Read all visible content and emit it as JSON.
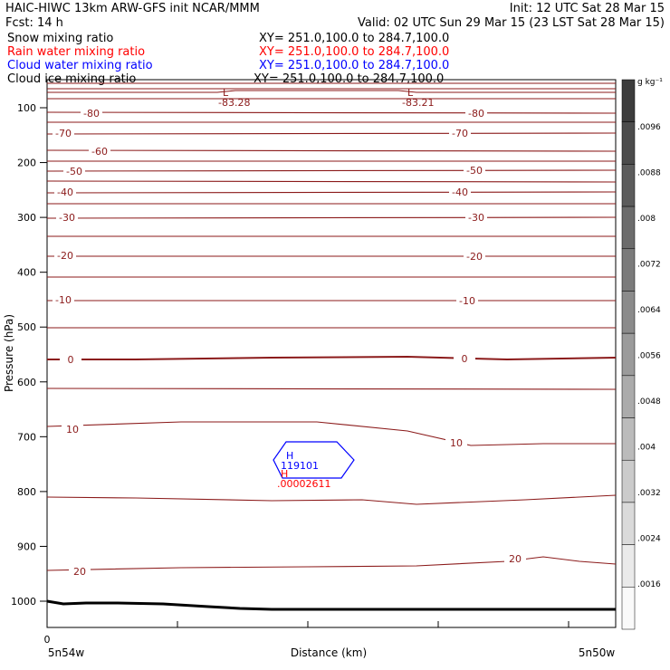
{
  "header": {
    "title": "HAIC-HIWC 13km ARW-GFS init   NCAR/MMM",
    "init": "Init: 12 UTC Sat 28 Mar 15",
    "fcst": "Fcst:   14 h",
    "valid": "Valid: 02 UTC Sun 29 Mar 15 (23 LST Sat 28 Mar 15)",
    "fields": [
      {
        "name": "Snow mixing ratio",
        "xy": "XY= 251.0,100.0 to 284.7,100.0",
        "color": "#000000"
      },
      {
        "name": "Rain water mixing ratio",
        "xy": "XY= 251.0,100.0 to 284.7,100.0",
        "color": "#ff0000"
      },
      {
        "name": "Cloud water mixing ratio",
        "xy": "XY= 251.0,100.0 to 284.7,100.0",
        "color": "#0000ff"
      },
      {
        "name": "Cloud ice mixing ratio",
        "xy": "XY= 251.0,100.0 to 284.7,100.0",
        "color": "#000000"
      }
    ]
  },
  "chart_data": {
    "type": "contour cross-section",
    "ylabel": "Pressure (hPa)",
    "xlabel": "Distance (km)",
    "yticks": [
      100,
      200,
      300,
      400,
      500,
      600,
      700,
      800,
      900,
      1000
    ],
    "ylim": [
      1050,
      55
    ],
    "x_tick_zero": "0",
    "x_left_label": "5n54w",
    "x_right_label": "5n50w",
    "temperature_contour_labels": [
      "-80",
      "-70",
      "-60",
      "-50",
      "-40",
      "-30",
      "-20",
      "-10",
      "0",
      "10",
      "20"
    ],
    "minima": [
      {
        "letter": "L",
        "value": "-83.28"
      },
      {
        "letter": "L",
        "value": "-83.21"
      }
    ],
    "cloud_water_max": {
      "letter": "H",
      "value": "119101",
      "color": "#0000ff"
    },
    "rain_water_max": {
      "letter": "H",
      "value": ".00002611",
      "color": "#ff0000"
    },
    "colorbar": {
      "unit": "g kg⁻¹",
      "labels": [
        ".0096",
        ".0088",
        ".008",
        ".0072",
        ".0064",
        ".0056",
        ".0048",
        ".004",
        ".0032",
        ".0024",
        ".0016"
      ]
    },
    "contour_color": "#8b1a1a"
  }
}
